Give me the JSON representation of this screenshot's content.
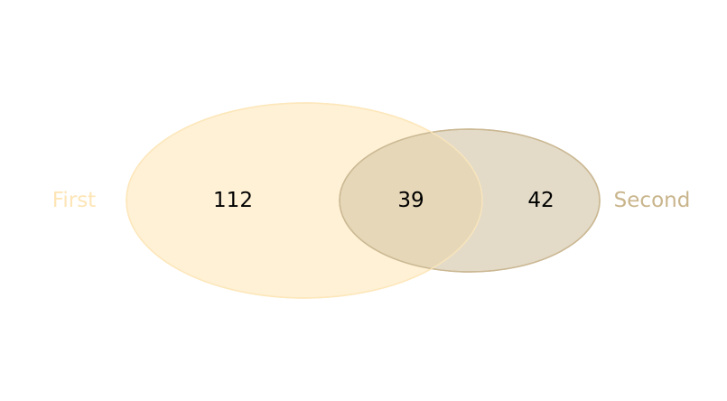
{
  "venn": {
    "type": "venn2",
    "sets": [
      {
        "id": "first",
        "label": "First",
        "only_count": "112",
        "fill_color": "#fff1d6",
        "stroke_color": "#fde7bb",
        "label_color": "#fde5b6"
      },
      {
        "id": "second",
        "label": "Second",
        "only_count": "42",
        "fill_color": "#e3dbc8",
        "stroke_color": "#cbb893",
        "label_color": "#c9b58c"
      }
    ],
    "intersection": {
      "count": "39",
      "fill_color": "#e5d7b7"
    }
  }
}
